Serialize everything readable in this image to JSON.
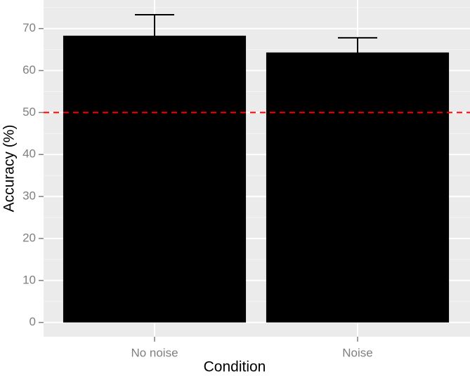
{
  "chart_data": {
    "type": "bar",
    "categories": [
      "No noise",
      "Noise"
    ],
    "values": [
      68.3,
      64.3
    ],
    "errors": [
      5.0,
      3.5
    ],
    "color": "#000000",
    "x_label": "Condition",
    "y_label": "Accuracy (%)",
    "ylim": [
      -3.4,
      76.8
    ],
    "yticks": [
      0,
      10,
      20,
      30,
      40,
      50,
      60,
      70
    ],
    "grid": true,
    "reference_line": {
      "value": 50,
      "color": "#ff0000",
      "style": "dashed"
    }
  }
}
